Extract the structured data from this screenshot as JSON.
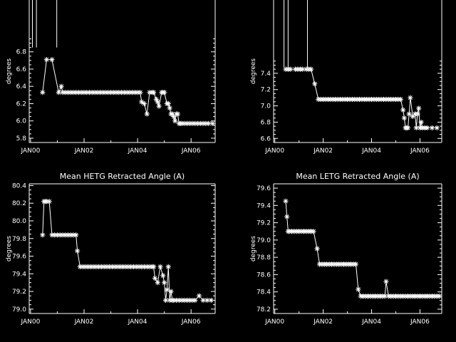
{
  "chart_data": [
    {
      "type": "line",
      "title": "",
      "ylabel": "degrees",
      "xlabel": "",
      "ylim": [
        5.75,
        7.4
      ],
      "xlim": [
        -0.05,
        6.9
      ],
      "yticks": [
        5.8,
        6.0,
        6.2,
        6.4,
        6.6,
        6.8
      ],
      "ytick_labels": [
        "5.8",
        "6.0",
        "6.2",
        "6.4",
        "6.6",
        "6.8"
      ],
      "xticks": [
        0,
        2,
        4,
        6
      ],
      "xtick_labels": [
        "JAN00",
        "JAN02",
        "JAN04",
        "JAN06"
      ],
      "series": [
        {
          "name": "",
          "marker": "asterisk",
          "x": [
            0.45,
            0.6,
            0.8,
            1.05,
            1.15,
            1.2,
            1.3,
            1.4,
            1.5,
            1.6,
            1.7,
            1.8,
            1.9,
            2.0,
            2.1,
            2.2,
            2.3,
            2.4,
            2.5,
            2.6,
            2.7,
            2.8,
            2.9,
            3.0,
            3.1,
            3.2,
            3.3,
            3.4,
            3.5,
            3.6,
            3.7,
            3.8,
            3.9,
            4.0,
            4.1,
            4.15,
            4.25,
            4.35,
            4.45,
            4.55,
            4.6,
            4.7,
            4.75,
            4.8,
            4.9,
            4.95,
            5.0,
            5.1,
            5.15,
            5.2,
            5.25,
            5.3,
            5.35,
            5.4,
            5.45,
            5.5,
            5.55,
            5.6,
            5.65,
            5.75,
            5.85,
            5.95,
            6.05,
            6.15,
            6.25,
            6.35,
            6.45,
            6.55,
            6.65,
            6.8
          ],
          "y": [
            6.33,
            6.71,
            6.71,
            6.33,
            6.4,
            6.33,
            6.33,
            6.33,
            6.33,
            6.33,
            6.33,
            6.33,
            6.33,
            6.33,
            6.33,
            6.33,
            6.33,
            6.33,
            6.33,
            6.33,
            6.33,
            6.33,
            6.33,
            6.33,
            6.33,
            6.33,
            6.33,
            6.33,
            6.33,
            6.33,
            6.33,
            6.33,
            6.33,
            6.33,
            6.33,
            6.22,
            6.2,
            6.08,
            6.33,
            6.33,
            6.33,
            6.25,
            6.22,
            6.17,
            6.33,
            6.33,
            6.33,
            6.2,
            6.2,
            6.15,
            6.08,
            6.08,
            6.05,
            6.0,
            6.08,
            6.08,
            5.97,
            5.97,
            5.97,
            5.97,
            5.97,
            5.97,
            5.97,
            5.97,
            5.97,
            5.97,
            5.97,
            5.97,
            5.97,
            5.97
          ],
          "spikes": [
            {
              "x": 0.07,
              "peak": 7.4,
              "base": 6.85
            },
            {
              "x": 0.22,
              "peak": 7.4,
              "base": 6.85
            },
            {
              "x": 0.98,
              "peak": 7.4,
              "base": 6.85
            }
          ]
        }
      ]
    },
    {
      "type": "line",
      "title": "",
      "ylabel": "degrees",
      "xlabel": "",
      "ylim": [
        6.55,
        8.3
      ],
      "xlim": [
        -0.05,
        6.9
      ],
      "yticks": [
        6.6,
        6.8,
        7.0,
        7.2,
        7.4
      ],
      "ytick_labels": [
        "6.6",
        "6.8",
        "7.0",
        "7.2",
        "7.4"
      ],
      "xticks": [
        0,
        2,
        4,
        6
      ],
      "xtick_labels": [
        "JAN00",
        "JAN02",
        "JAN04",
        "JAN06"
      ],
      "series": [
        {
          "name": "",
          "marker": "asterisk",
          "x": [
            0.45,
            0.55,
            0.65,
            0.85,
            0.95,
            1.05,
            1.15,
            1.3,
            1.4,
            1.5,
            1.65,
            1.8,
            1.9,
            2.0,
            2.1,
            2.2,
            2.3,
            2.4,
            2.5,
            2.6,
            2.7,
            2.8,
            2.9,
            3.0,
            3.1,
            3.2,
            3.3,
            3.4,
            3.5,
            3.6,
            3.7,
            3.8,
            3.9,
            4.0,
            4.1,
            4.2,
            4.3,
            4.4,
            4.5,
            4.6,
            4.7,
            4.8,
            4.9,
            5.0,
            5.1,
            5.2,
            5.3,
            5.35,
            5.4,
            5.45,
            5.5,
            5.55,
            5.6,
            5.7,
            5.8,
            5.85,
            5.9,
            5.95,
            6.0,
            6.05,
            6.1,
            6.2,
            6.3,
            6.5,
            6.7
          ],
          "y": [
            7.45,
            7.45,
            7.45,
            7.45,
            7.45,
            7.45,
            7.45,
            7.45,
            7.45,
            7.45,
            7.27,
            7.08,
            7.08,
            7.08,
            7.08,
            7.08,
            7.08,
            7.08,
            7.08,
            7.08,
            7.08,
            7.08,
            7.08,
            7.08,
            7.08,
            7.08,
            7.08,
            7.08,
            7.08,
            7.08,
            7.08,
            7.08,
            7.08,
            7.08,
            7.08,
            7.08,
            7.08,
            7.08,
            7.08,
            7.08,
            7.08,
            7.08,
            7.08,
            7.08,
            7.08,
            7.08,
            6.95,
            6.85,
            6.73,
            6.73,
            6.73,
            6.9,
            7.1,
            6.87,
            6.9,
            6.73,
            6.9,
            6.97,
            6.73,
            6.8,
            6.73,
            6.73,
            6.73,
            6.73,
            6.73
          ],
          "spikes": [
            {
              "x": 0.38,
              "peak": 8.3,
              "base": 7.47
            },
            {
              "x": 0.55,
              "peak": 8.3,
              "base": 7.47
            },
            {
              "x": 1.35,
              "peak": 8.3,
              "base": 7.47
            }
          ]
        }
      ]
    },
    {
      "type": "line",
      "title": "Mean HETG Retracted Angle (A)",
      "ylabel": "degrees",
      "xlabel": "",
      "ylim": [
        78.95,
        80.42
      ],
      "xlim": [
        -0.05,
        6.9
      ],
      "yticks": [
        79.0,
        79.2,
        79.4,
        79.6,
        79.8,
        80.0,
        80.2,
        80.4
      ],
      "ytick_labels": [
        "79.0",
        "79.2",
        "79.4",
        "79.6",
        "79.8",
        "80.0",
        "80.2",
        "80.4"
      ],
      "xticks": [
        0,
        2,
        4,
        6
      ],
      "xtick_labels": [
        "JAN00",
        "JAN02",
        "JAN04",
        "JAN06"
      ],
      "series": [
        {
          "name": "",
          "marker": "asterisk",
          "x": [
            0.45,
            0.5,
            0.55,
            0.6,
            0.7,
            0.8,
            0.9,
            1.0,
            1.1,
            1.2,
            1.3,
            1.4,
            1.5,
            1.6,
            1.7,
            1.75,
            1.85,
            1.95,
            2.05,
            2.15,
            2.25,
            2.35,
            2.45,
            2.55,
            2.65,
            2.75,
            2.85,
            2.95,
            3.05,
            3.15,
            3.25,
            3.35,
            3.45,
            3.55,
            3.65,
            3.75,
            3.85,
            3.95,
            4.05,
            4.15,
            4.25,
            4.35,
            4.45,
            4.55,
            4.6,
            4.65,
            4.75,
            4.85,
            4.95,
            5.0,
            5.05,
            5.1,
            5.15,
            5.2,
            5.25,
            5.3,
            5.35,
            5.45,
            5.55,
            5.65,
            5.75,
            5.85,
            5.95,
            6.05,
            6.15,
            6.3,
            6.45,
            6.6,
            6.75
          ],
          "y": [
            79.84,
            80.22,
            80.22,
            80.22,
            80.22,
            79.84,
            79.84,
            79.84,
            79.84,
            79.84,
            79.84,
            79.84,
            79.84,
            79.84,
            79.84,
            79.66,
            79.48,
            79.48,
            79.48,
            79.48,
            79.48,
            79.48,
            79.48,
            79.48,
            79.48,
            79.48,
            79.48,
            79.48,
            79.48,
            79.48,
            79.48,
            79.48,
            79.48,
            79.48,
            79.48,
            79.48,
            79.48,
            79.48,
            79.48,
            79.48,
            79.48,
            79.48,
            79.48,
            79.48,
            79.48,
            79.35,
            79.3,
            79.48,
            79.38,
            79.3,
            79.1,
            79.22,
            79.48,
            79.1,
            79.2,
            79.1,
            79.1,
            79.1,
            79.1,
            79.1,
            79.1,
            79.1,
            79.1,
            79.1,
            79.1,
            79.15,
            79.1,
            79.1,
            79.1
          ]
        }
      ]
    },
    {
      "type": "line",
      "title": "Mean LETG Retracted Angle (A)",
      "ylabel": "degrees",
      "xlabel": "",
      "ylim": [
        78.15,
        79.65
      ],
      "xlim": [
        -0.05,
        6.9
      ],
      "yticks": [
        78.2,
        78.4,
        78.6,
        78.8,
        79.0,
        79.2,
        79.4,
        79.6
      ],
      "ytick_labels": [
        "78.2",
        "78.4",
        "78.6",
        "78.8",
        "79.0",
        "79.2",
        "79.4",
        "79.6"
      ],
      "xticks": [
        0,
        2,
        4,
        6
      ],
      "xtick_labels": [
        "JAN00",
        "JAN02",
        "JAN04",
        "JAN06"
      ],
      "series": [
        {
          "name": "",
          "marker": "asterisk",
          "x": [
            0.45,
            0.5,
            0.55,
            0.6,
            0.7,
            0.8,
            0.9,
            1.0,
            1.1,
            1.2,
            1.3,
            1.4,
            1.5,
            1.6,
            1.75,
            1.85,
            1.95,
            2.05,
            2.15,
            2.25,
            2.35,
            2.45,
            2.55,
            2.65,
            2.75,
            2.85,
            2.95,
            3.05,
            3.15,
            3.25,
            3.35,
            3.45,
            3.55,
            3.65,
            3.75,
            3.85,
            3.95,
            4.05,
            4.15,
            4.25,
            4.35,
            4.45,
            4.55,
            4.6,
            4.7,
            4.8,
            4.9,
            5.0,
            5.1,
            5.2,
            5.3,
            5.4,
            5.5,
            5.6,
            5.7,
            5.8,
            5.9,
            6.0,
            6.1,
            6.2,
            6.3,
            6.4,
            6.5,
            6.6,
            6.7,
            6.8
          ],
          "y": [
            79.45,
            79.27,
            79.1,
            79.1,
            79.1,
            79.1,
            79.1,
            79.1,
            79.1,
            79.1,
            79.1,
            79.1,
            79.1,
            79.1,
            78.9,
            78.72,
            78.72,
            78.72,
            78.72,
            78.72,
            78.72,
            78.72,
            78.72,
            78.72,
            78.72,
            78.72,
            78.72,
            78.72,
            78.72,
            78.72,
            78.72,
            78.43,
            78.35,
            78.35,
            78.35,
            78.35,
            78.35,
            78.35,
            78.35,
            78.35,
            78.35,
            78.35,
            78.35,
            78.52,
            78.35,
            78.35,
            78.35,
            78.35,
            78.35,
            78.35,
            78.35,
            78.35,
            78.35,
            78.35,
            78.35,
            78.35,
            78.35,
            78.35,
            78.35,
            78.35,
            78.35,
            78.35,
            78.35,
            78.35,
            78.35,
            78.35
          ]
        }
      ]
    }
  ]
}
